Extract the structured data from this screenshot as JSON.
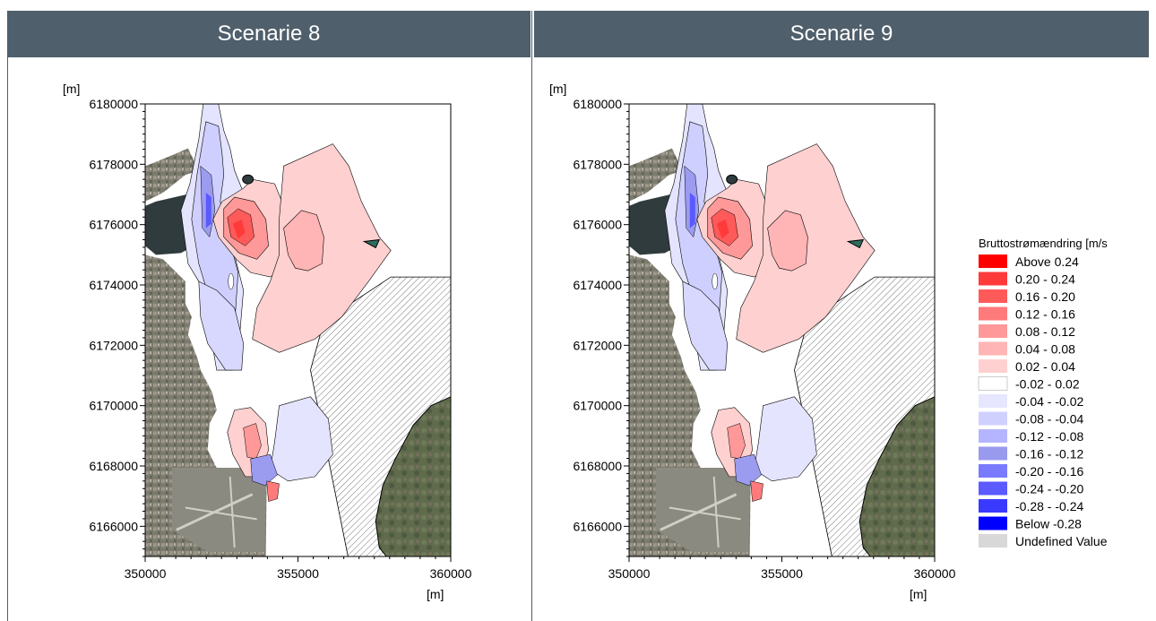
{
  "panels": [
    {
      "title": "Scenarie 8"
    },
    {
      "title": "Scenarie 9"
    }
  ],
  "axes": {
    "y_unit": "[m]",
    "x_unit": "[m]",
    "x_ticks": [
      "350000",
      "355000",
      "360000"
    ],
    "y_ticks": [
      "6180000",
      "6178000",
      "6176000",
      "6174000",
      "6172000",
      "6170000",
      "6168000",
      "6166000"
    ]
  },
  "legend": {
    "title": "Bruttostrømændring [m/s",
    "items": [
      {
        "label": "Above  0.24",
        "color": "#ff0000"
      },
      {
        "label": " 0.20 -  0.24",
        "color": "#ff3a3a"
      },
      {
        "label": " 0.16 -  0.20",
        "color": "#ff5a5a"
      },
      {
        "label": " 0.12 -  0.16",
        "color": "#ff7a7a"
      },
      {
        "label": " 0.08 -  0.12",
        "color": "#ff9999"
      },
      {
        "label": " 0.04 -  0.08",
        "color": "#ffb5b5"
      },
      {
        "label": " 0.02 -  0.04",
        "color": "#ffd0d0"
      },
      {
        "label": "-0.02 -  0.02",
        "color": "#ffffff"
      },
      {
        "label": "-0.04 - -0.02",
        "color": "#e6e6ff"
      },
      {
        "label": "-0.08 - -0.04",
        "color": "#d0d0ff"
      },
      {
        "label": "-0.12 - -0.08",
        "color": "#b5b5ff"
      },
      {
        "label": "-0.16 - -0.12",
        "color": "#9999ee"
      },
      {
        "label": "-0.20 - -0.16",
        "color": "#7a7aff"
      },
      {
        "label": "-0.24 - -0.20",
        "color": "#5a5aff"
      },
      {
        "label": "-0.28 - -0.24",
        "color": "#3a3aff"
      },
      {
        "label": "Below -0.28",
        "color": "#0000ff"
      },
      {
        "label": "Undefined Value",
        "color": "#d8d8d8"
      }
    ]
  },
  "chart_data": [
    {
      "type": "heatmap",
      "title": "Scenarie 8",
      "xlabel": "[m]",
      "ylabel": "[m]",
      "xlim": [
        350000,
        360000
      ],
      "ylim": [
        6165000,
        6180000
      ],
      "x_ticks": [
        350000,
        355000,
        360000
      ],
      "y_ticks": [
        6166000,
        6168000,
        6170000,
        6172000,
        6174000,
        6176000,
        6178000,
        6180000
      ],
      "legend_position": "right"
    },
    {
      "type": "heatmap",
      "title": "Scenarie 9",
      "xlabel": "[m]",
      "ylabel": "[m]",
      "xlim": [
        350000,
        360000
      ],
      "ylim": [
        6165000,
        6180000
      ],
      "x_ticks": [
        350000,
        355000,
        360000
      ],
      "y_ticks": [
        6166000,
        6168000,
        6170000,
        6172000,
        6174000,
        6176000,
        6178000,
        6180000
      ],
      "legend_position": "right"
    }
  ]
}
